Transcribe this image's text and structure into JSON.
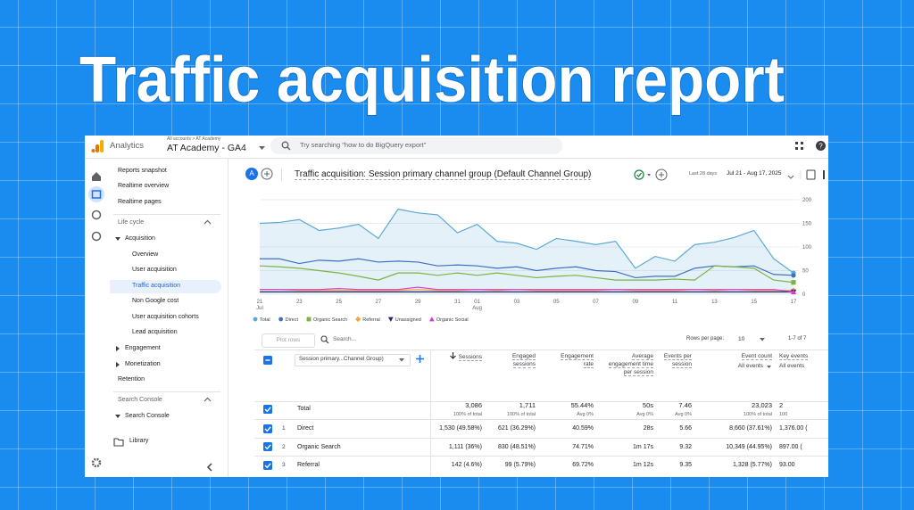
{
  "banner": {
    "title": "Traffic acquisition report"
  },
  "app": {
    "product": "Analytics",
    "breadcrumb": "All accounts > AT Academy",
    "property": "AT Academy - GA4",
    "search_placeholder": "Try searching \"how to do BigQuery export\""
  },
  "sidebar": {
    "items": [
      {
        "label": "Reports snapshot",
        "level": "top"
      },
      {
        "label": "Realtime overview",
        "level": "top"
      },
      {
        "label": "Realtime pages",
        "level": "top"
      },
      {
        "label": "Life cycle",
        "level": "section"
      },
      {
        "label": "Acquisition",
        "level": "group",
        "expanded": true
      },
      {
        "label": "Overview",
        "level": "item"
      },
      {
        "label": "User acquisition",
        "level": "item"
      },
      {
        "label": "Traffic acquisition",
        "level": "item",
        "active": true
      },
      {
        "label": "Non Google cost",
        "level": "item"
      },
      {
        "label": "User acquisition cohorts",
        "level": "item"
      },
      {
        "label": "Lead acquisition",
        "level": "item"
      },
      {
        "label": "Engagement",
        "level": "group",
        "expanded": false
      },
      {
        "label": "Monetization",
        "level": "group",
        "expanded": false
      },
      {
        "label": "Retention",
        "level": "top"
      },
      {
        "label": "Search Console",
        "level": "section"
      },
      {
        "label": "Search Console",
        "level": "group",
        "expanded": true
      },
      {
        "label": "Library",
        "level": "footer"
      }
    ]
  },
  "report": {
    "avatar": "A",
    "title": "Traffic acquisition: Session primary channel group (Default Channel Group)",
    "date_label": "Last 28 days",
    "date_range": "Jul 21 - Aug 17, 2025"
  },
  "chart_data": {
    "type": "line",
    "categories": [
      "21",
      null,
      "23",
      null,
      "25",
      null,
      "27",
      null,
      "29",
      null,
      "31",
      "01",
      null,
      "03",
      null,
      "05",
      null,
      "07",
      null,
      "09",
      null,
      "11",
      null,
      "13",
      null,
      "15",
      null,
      "17"
    ],
    "category_months": [
      "Jul",
      null,
      null,
      null,
      null,
      null,
      null,
      null,
      null,
      null,
      null,
      "Aug",
      null,
      null,
      null,
      null,
      null,
      null,
      null,
      null,
      null,
      null,
      null,
      null,
      null,
      null,
      null,
      null
    ],
    "ylim": [
      0,
      200
    ],
    "yticks": [
      0,
      50,
      100,
      150,
      200
    ],
    "grid": true,
    "series": [
      {
        "name": "Total",
        "color": "#5aa9d6",
        "marker": "circle",
        "area": true,
        "values": [
          150,
          152,
          158,
          135,
          140,
          148,
          118,
          180,
          172,
          168,
          130,
          148,
          112,
          108,
          95,
          118,
          112,
          105,
          112,
          55,
          80,
          70,
          105,
          110,
          120,
          135,
          75,
          45
        ]
      },
      {
        "name": "Direct",
        "color": "#3d6fc4",
        "marker": "circle",
        "values": [
          75,
          75,
          65,
          72,
          70,
          75,
          68,
          70,
          68,
          60,
          62,
          60,
          55,
          58,
          50,
          55,
          58,
          50,
          48,
          35,
          38,
          38,
          55,
          60,
          58,
          60,
          42,
          40
        ]
      },
      {
        "name": "Organic Search",
        "color": "#7cb342",
        "marker": "square",
        "values": [
          60,
          58,
          55,
          50,
          45,
          38,
          30,
          45,
          45,
          40,
          45,
          40,
          45,
          40,
          35,
          38,
          40,
          35,
          30,
          30,
          30,
          32,
          30,
          60,
          58,
          55,
          30,
          25
        ]
      },
      {
        "name": "Referral",
        "color": "#f2a53b",
        "marker": "diamond",
        "values": [
          10,
          10,
          8,
          8,
          8,
          8,
          8,
          8,
          10,
          8,
          8,
          10,
          8,
          10,
          8,
          8,
          8,
          8,
          10,
          8,
          8,
          8,
          10,
          8,
          10,
          8,
          8,
          8
        ]
      },
      {
        "name": "Unassigned",
        "color": "#1f2a6b",
        "marker": "triangle-down",
        "values": [
          5,
          5,
          5,
          5,
          5,
          5,
          5,
          5,
          5,
          5,
          5,
          5,
          5,
          5,
          5,
          5,
          5,
          5,
          5,
          5,
          5,
          5,
          5,
          5,
          5,
          5,
          5,
          5
        ]
      },
      {
        "name": "Organic Social",
        "color": "#d63bd1",
        "marker": "triangle",
        "values": [
          10,
          10,
          10,
          10,
          12,
          10,
          10,
          10,
          15,
          10,
          10,
          10,
          10,
          10,
          10,
          10,
          10,
          10,
          10,
          10,
          10,
          10,
          10,
          10,
          10,
          10,
          10,
          5
        ]
      }
    ]
  },
  "table": {
    "toolbar": {
      "plot_rows": "Plot rows",
      "search": "Search...",
      "rows_per_page_label": "Rows per page:",
      "rows_per_page": "10",
      "pagination": "1-7 of 7"
    },
    "dimension": "Session primary...Channel Group)",
    "columns": [
      {
        "label": "Sessions",
        "sorted": true
      },
      {
        "label": "Engaged sessions"
      },
      {
        "label": "Engagement rate"
      },
      {
        "label": "Average engagement time per session"
      },
      {
        "label": "Events per session"
      },
      {
        "label": "Event count",
        "filter": "All events"
      },
      {
        "label": "Key events",
        "filter": "All events"
      }
    ],
    "total": {
      "label": "Total",
      "cells": [
        [
          "3,086",
          "100% of total"
        ],
        [
          "1,711",
          "100% of total"
        ],
        [
          "55.44%",
          "Avg 0%"
        ],
        [
          "50s",
          "Avg 0%"
        ],
        [
          "7.46",
          "Avg 0%"
        ],
        [
          "23,023",
          "100% of total"
        ],
        [
          "2",
          "100"
        ]
      ]
    },
    "rows": [
      {
        "index": 1,
        "name": "Direct",
        "cells": [
          "1,530 (49.58%)",
          "621 (36.29%)",
          "40.59%",
          "28s",
          "5.66",
          "8,660 (37.61%)",
          "1,376.00 ("
        ]
      },
      {
        "index": 2,
        "name": "Organic Search",
        "cells": [
          "1,111 (36%)",
          "830 (48.51%)",
          "74.71%",
          "1m 17s",
          "9.32",
          "10,349 (44.95%)",
          "897.00 ("
        ]
      },
      {
        "index": 3,
        "name": "Referral",
        "cells": [
          "142 (4.6%)",
          "99 (5.79%)",
          "69.72%",
          "1m 12s",
          "9.35",
          "1,328 (5.77%)",
          "93.00"
        ]
      }
    ]
  }
}
